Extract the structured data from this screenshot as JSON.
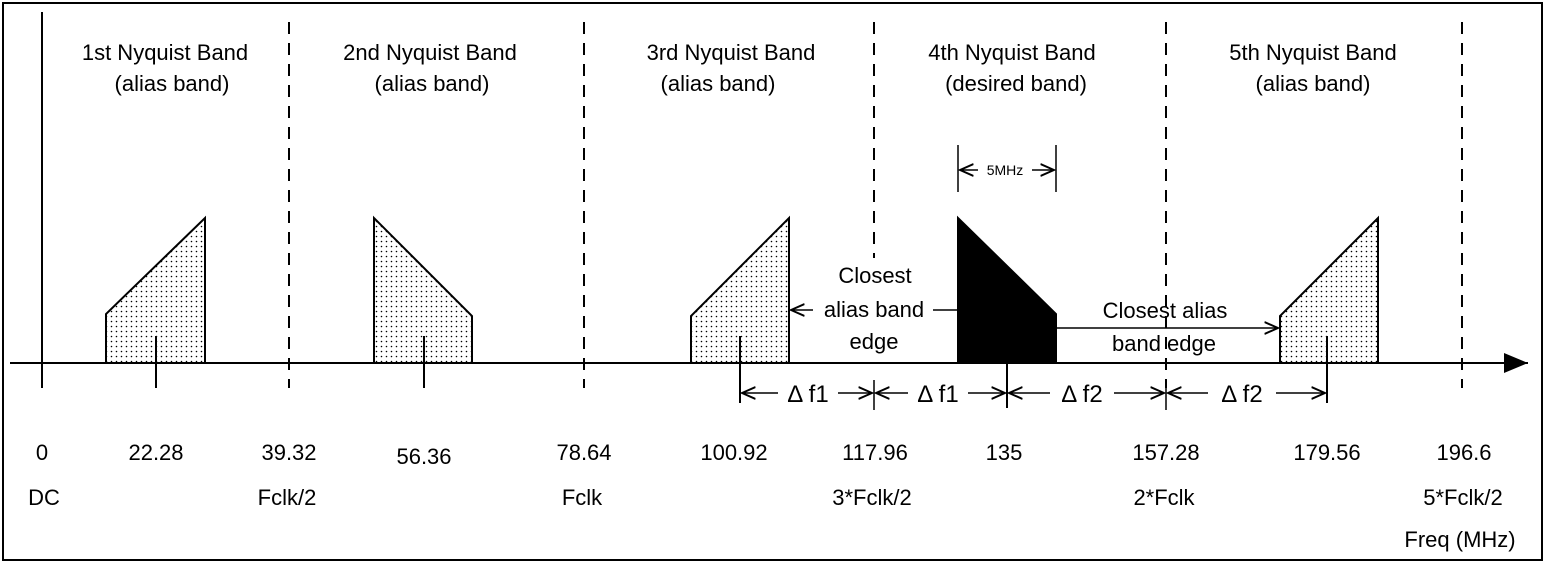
{
  "bands": [
    {
      "title": "1st Nyquist Band",
      "subtitle": "(alias band)"
    },
    {
      "title": "2nd Nyquist Band",
      "subtitle": "(alias band)"
    },
    {
      "title": "3rd Nyquist Band",
      "subtitle": "(alias band)"
    },
    {
      "title": "4th Nyquist Band",
      "subtitle": "(desired band)"
    },
    {
      "title": "5th Nyquist Band",
      "subtitle": "(alias band)"
    }
  ],
  "freq_labels": [
    "0",
    "22.28",
    "39.32",
    "56.36",
    "78.64",
    "100.92",
    "117.96",
    "135",
    "157.28",
    "179.56",
    "196.6"
  ],
  "clock_labels": [
    "DC",
    "Fclk/2",
    "Fclk",
    "3*Fclk/2",
    "2*Fclk",
    "5*Fclk/2"
  ],
  "axis_label": "Freq (MHz)",
  "bandwidth_label": "5MHz",
  "closest_edge_left": [
    "Closest",
    "alias band",
    "edge"
  ],
  "closest_edge_right": [
    "Closest alias",
    "band edge"
  ],
  "delta_f1": "Δ f1",
  "delta_f2": "Δ f2",
  "colors": {
    "desired_fill": "#000000",
    "alias_fill": "#ffffff",
    "line": "#000000"
  }
}
